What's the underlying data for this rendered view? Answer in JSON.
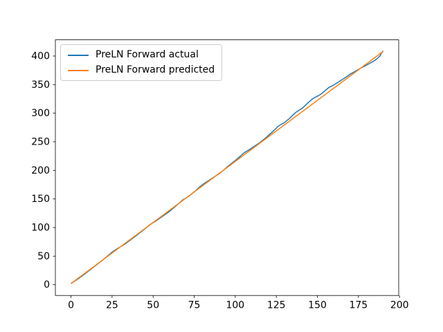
{
  "chart_data": {
    "type": "line",
    "title": "",
    "xlabel": "",
    "ylabel": "",
    "grid": false,
    "legend_position": "upper left",
    "xlim": [
      -9.5,
      199.5
    ],
    "ylim": [
      -18.8,
      428.3
    ],
    "x_ticks": [
      0,
      25,
      50,
      75,
      100,
      125,
      150,
      175,
      200
    ],
    "y_ticks": [
      0,
      50,
      100,
      150,
      200,
      250,
      300,
      350,
      400
    ],
    "axis_color": "#000000",
    "background_color": "#ffffff",
    "series": [
      {
        "name": "PreLN Forward actual",
        "color": "#1f77b4",
        "line_width": 1.5,
        "points": [
          [
            0,
            2.0
          ],
          [
            5,
            11.7
          ],
          [
            10,
            22.4
          ],
          [
            15,
            33.6
          ],
          [
            20,
            44.7
          ],
          [
            25,
            56.9
          ],
          [
            28,
            62.8
          ],
          [
            30,
            66.1
          ],
          [
            33,
            71.5
          ],
          [
            36,
            77.9
          ],
          [
            40,
            86.5
          ],
          [
            45,
            97.7
          ],
          [
            48,
            105.1
          ],
          [
            52,
            112.1
          ],
          [
            56,
            120.2
          ],
          [
            60,
            128.2
          ],
          [
            63,
            135.6
          ],
          [
            66,
            143.0
          ],
          [
            68,
            148.3
          ],
          [
            70,
            151.6
          ],
          [
            72,
            155.4
          ],
          [
            75,
            162.3
          ],
          [
            78,
            170.2
          ],
          [
            80,
            174.9
          ],
          [
            82,
            178.7
          ],
          [
            85,
            184.6
          ],
          [
            88,
            190.1
          ],
          [
            90,
            193.8
          ],
          [
            93,
            200.7
          ],
          [
            96,
            208.2
          ],
          [
            100,
            217.2
          ],
          [
            103,
            224.6
          ],
          [
            105,
            229.9
          ],
          [
            107,
            233.7
          ],
          [
            109,
            236.9
          ],
          [
            112,
            242.8
          ],
          [
            115,
            248.7
          ],
          [
            118,
            255.7
          ],
          [
            121,
            263.1
          ],
          [
            124,
            271.0
          ],
          [
            126,
            276.8
          ],
          [
            128,
            280.5
          ],
          [
            130,
            283.8
          ],
          [
            133,
            290.7
          ],
          [
            135,
            296.5
          ],
          [
            137,
            301.8
          ],
          [
            139,
            305.5
          ],
          [
            141,
            309.3
          ],
          [
            143,
            314.6
          ],
          [
            145,
            319.9
          ],
          [
            147,
            325.1
          ],
          [
            149,
            328.4
          ],
          [
            151,
            331.2
          ],
          [
            153,
            335.0
          ],
          [
            155,
            340.2
          ],
          [
            157,
            345.0
          ],
          [
            159,
            347.8
          ],
          [
            161,
            351.1
          ],
          [
            163,
            354.8
          ],
          [
            165,
            358.6
          ],
          [
            167,
            362.4
          ],
          [
            170,
            368.3
          ],
          [
            172,
            371.6
          ],
          [
            174,
            374.8
          ],
          [
            176,
            378.1
          ],
          [
            178,
            381.4
          ],
          [
            180,
            384.2
          ],
          [
            182,
            387.4
          ],
          [
            184,
            390.7
          ],
          [
            186,
            394.5
          ],
          [
            188,
            399.8
          ],
          [
            189,
            404.9
          ],
          [
            190,
            409.0
          ]
        ]
      },
      {
        "name": "PreLN Forward predicted",
        "color": "#ff7f0e",
        "line_width": 1.5,
        "points": [
          [
            0,
            2.0
          ],
          [
            190,
            408.0
          ]
        ]
      }
    ]
  }
}
